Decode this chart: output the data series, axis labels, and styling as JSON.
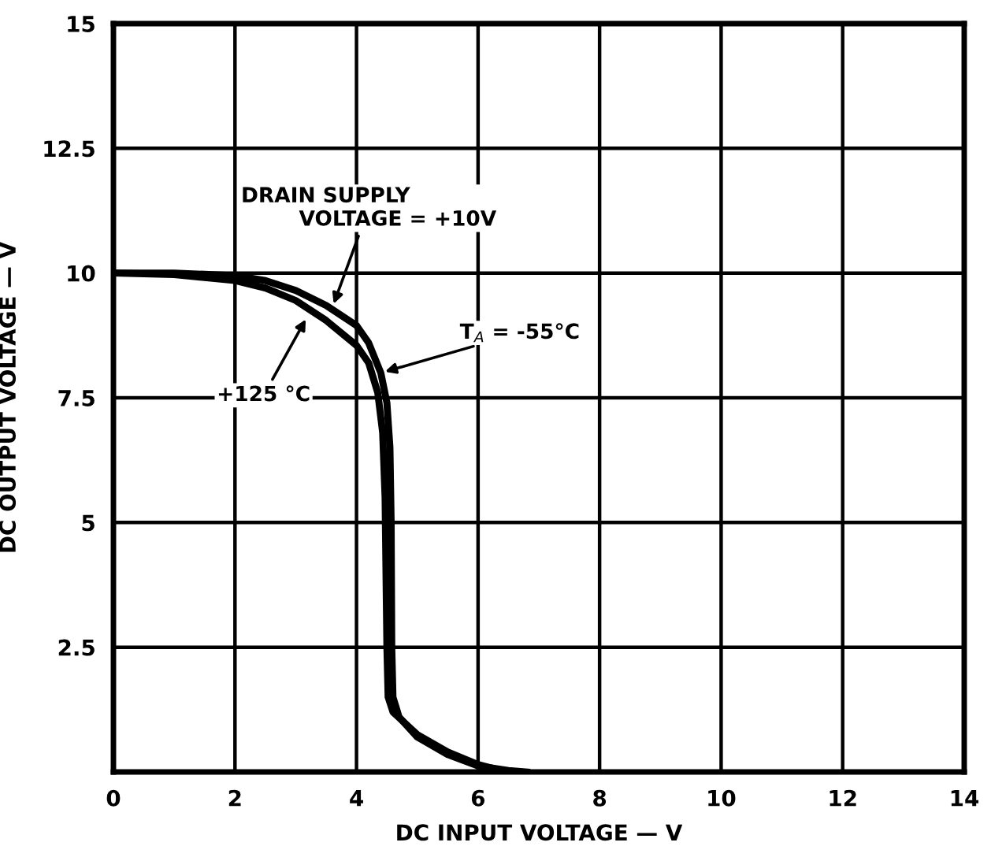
{
  "chart_data": {
    "type": "line",
    "xlabel": "DC INPUT VOLTAGE — V",
    "ylabel": "DC OUTPUT VOLTAGE — V",
    "xlim": [
      0,
      14
    ],
    "xticks": [
      0,
      2,
      4,
      6,
      8,
      10,
      12,
      14
    ],
    "ylim": [
      0,
      15
    ],
    "yticks": [
      {
        "value": 0,
        "label": null
      },
      2.5,
      5,
      7.5,
      10,
      12.5,
      15
    ],
    "grid": true,
    "marker": "none",
    "line_style": "solid",
    "series": [
      {
        "color": "#000000",
        "x": [
          0,
          1,
          2,
          2.5,
          3,
          3.5,
          4,
          4.2,
          4.4,
          4.5,
          4.55,
          4.57,
          4.58,
          4.6,
          4.7,
          5,
          5.5,
          6,
          6.5,
          6.8
        ],
        "values": [
          10,
          10,
          9.95,
          9.85,
          9.65,
          9.35,
          8.95,
          8.6,
          8.0,
          7.4,
          6.5,
          5,
          2.5,
          1.5,
          1.1,
          0.7,
          0.35,
          0.12,
          0.03,
          0
        ]
      },
      {
        "color": "#000000",
        "x": [
          0,
          1,
          2,
          2.5,
          3,
          3.5,
          4,
          4.2,
          4.35,
          4.43,
          4.47,
          4.5,
          4.52,
          4.6,
          5,
          5.5,
          6,
          6.4
        ],
        "values": [
          10,
          9.97,
          9.85,
          9.7,
          9.45,
          9.05,
          8.55,
          8.2,
          7.6,
          6.8,
          5.5,
          2.5,
          1.5,
          1.2,
          0.75,
          0.4,
          0.15,
          0.02
        ]
      }
    ],
    "annotations": [
      {
        "text": "DRAIN SUPPLY\n        VOLTAGE = +10V",
        "x": 3.6,
        "y": 9.3
      },
      {
        "text": "+125 °C",
        "x": 3.2,
        "y": 9.15
      },
      {
        "text": "T$_{A}$ = -55°C",
        "x": 4.4,
        "y": 8.0
      }
    ]
  }
}
